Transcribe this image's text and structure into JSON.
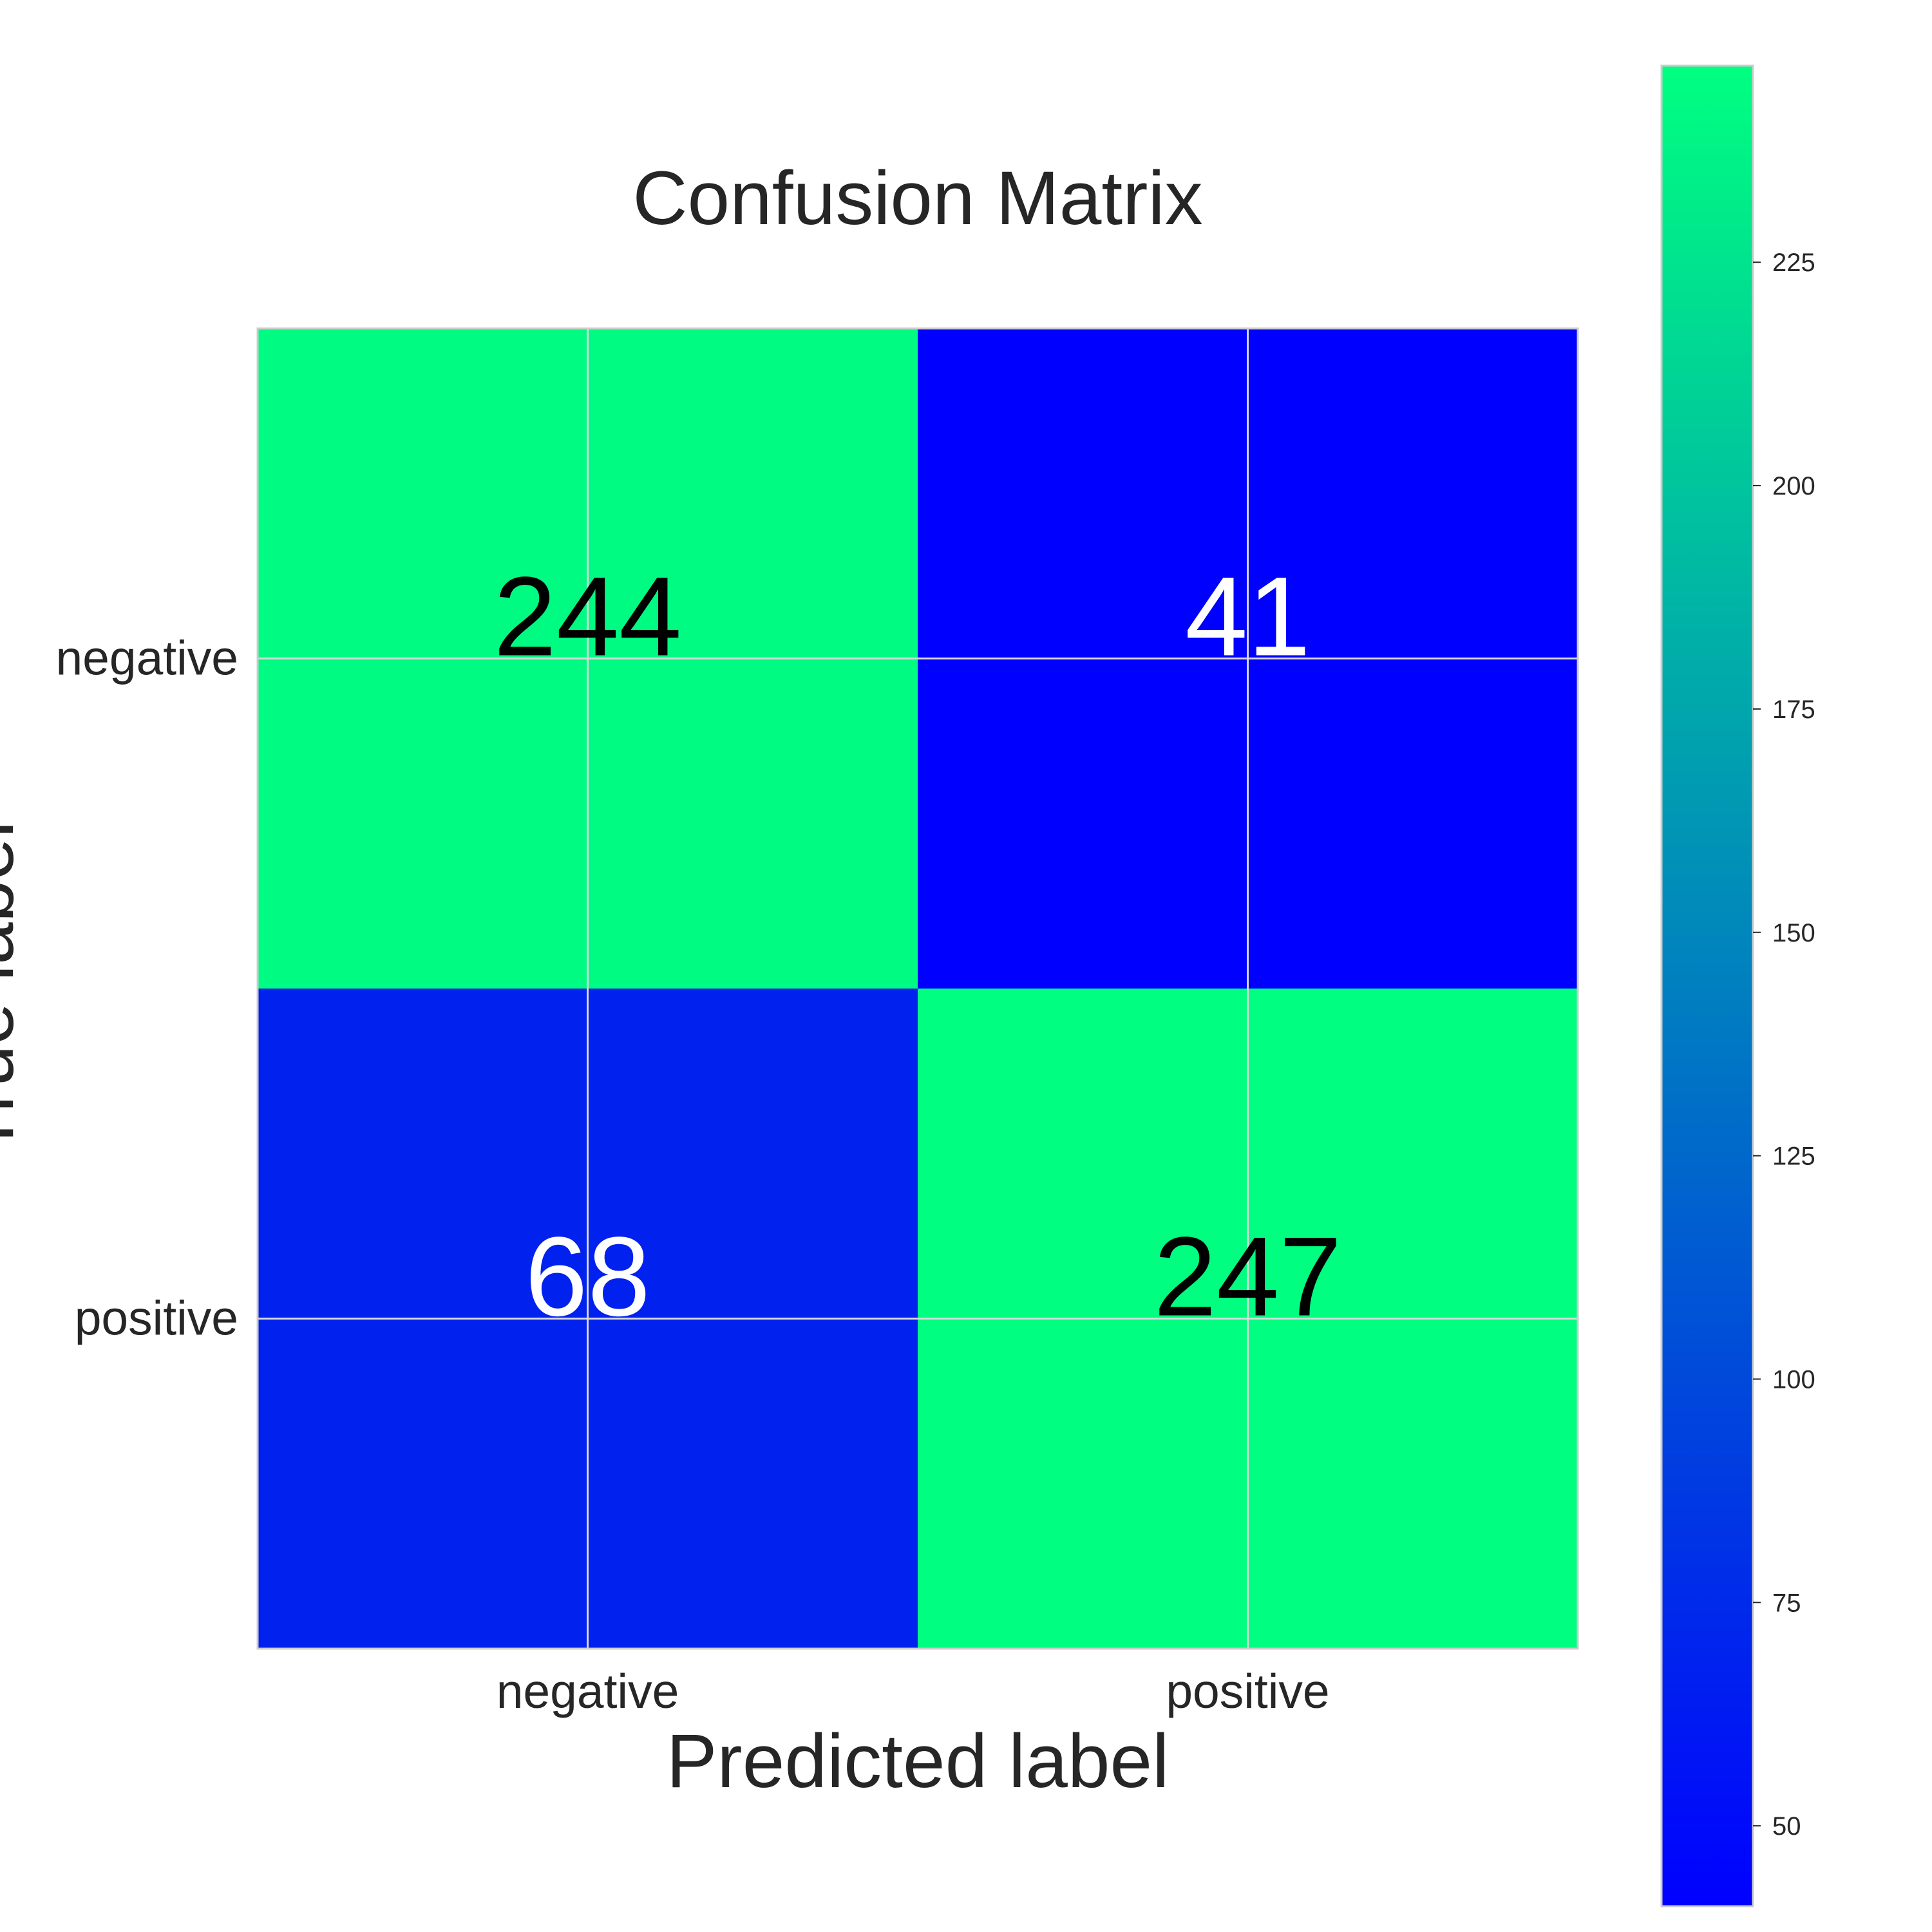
{
  "chart_data": {
    "type": "heatmap",
    "title": "Confusion Matrix",
    "xlabel": "Predicted label",
    "ylabel": "True label",
    "x_categories": [
      "negative",
      "positive"
    ],
    "y_categories": [
      "negative",
      "positive"
    ],
    "values": [
      [
        244,
        41
      ],
      [
        68,
        247
      ]
    ],
    "colormap": "winter",
    "colormap_start": "#0000ff",
    "colormap_end": "#00ff80",
    "colorbar": {
      "range": [
        41,
        247
      ],
      "ticks": [
        50,
        75,
        100,
        125,
        150,
        175,
        200,
        225
      ]
    },
    "grid": true,
    "threshold_text_color": {
      "below": "#ffffff",
      "above": "#000000"
    }
  }
}
